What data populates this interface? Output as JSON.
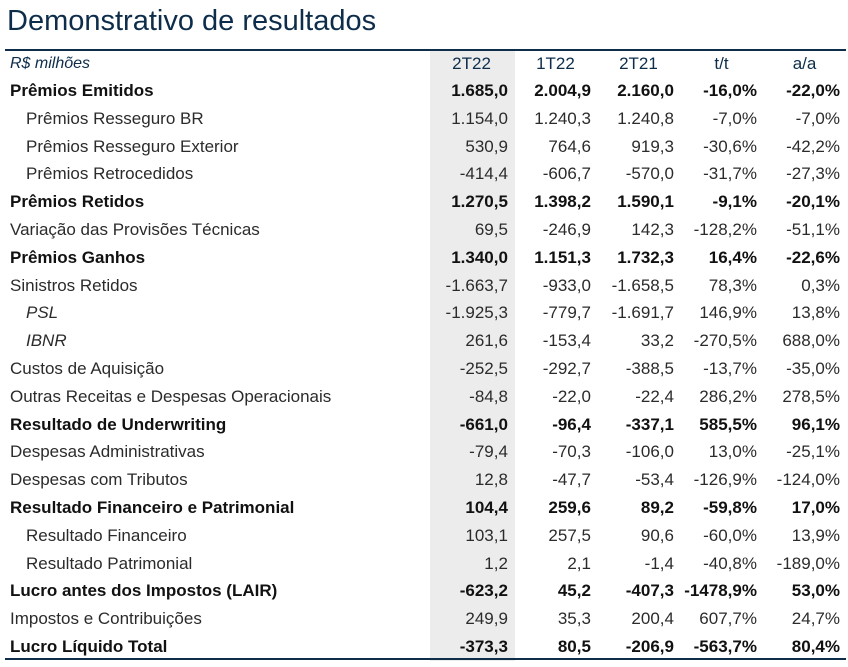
{
  "title": "Demonstrativo de resultados",
  "header": {
    "unit_label": "R$ milhões",
    "columns": [
      "2T22",
      "1T22",
      "2T21",
      "t/t",
      "a/a"
    ]
  },
  "rows": [
    {
      "label": "Prêmios Emitidos",
      "style": "bold",
      "values": [
        "1.685,0",
        "2.004,9",
        "2.160,0",
        "-16,0%",
        "-22,0%"
      ]
    },
    {
      "label": "Prêmios Resseguro BR",
      "style": "indent",
      "values": [
        "1.154,0",
        "1.240,3",
        "1.240,8",
        "-7,0%",
        "-7,0%"
      ]
    },
    {
      "label": "Prêmios Resseguro Exterior",
      "style": "indent",
      "values": [
        "530,9",
        "764,6",
        "919,3",
        "-30,6%",
        "-42,2%"
      ]
    },
    {
      "label": "Prêmios Retrocedidos",
      "style": "indent",
      "values": [
        "-414,4",
        "-606,7",
        "-570,0",
        "-31,7%",
        "-27,3%"
      ]
    },
    {
      "label": "Prêmios Retidos",
      "style": "bold",
      "values": [
        "1.270,5",
        "1.398,2",
        "1.590,1",
        "-9,1%",
        "-20,1%"
      ]
    },
    {
      "label": "Variação das Provisões Técnicas",
      "style": "normal",
      "values": [
        "69,5",
        "-246,9",
        "142,3",
        "-128,2%",
        "-51,1%"
      ]
    },
    {
      "label": "Prêmios Ganhos",
      "style": "bold",
      "values": [
        "1.340,0",
        "1.151,3",
        "1.732,3",
        "16,4%",
        "-22,6%"
      ]
    },
    {
      "label": "Sinistros Retidos",
      "style": "normal",
      "values": [
        "-1.663,7",
        "-933,0",
        "-1.658,5",
        "78,3%",
        "0,3%"
      ]
    },
    {
      "label": "PSL",
      "style": "indent-italic",
      "values": [
        "-1.925,3",
        "-779,7",
        "-1.691,7",
        "146,9%",
        "13,8%"
      ]
    },
    {
      "label": "IBNR",
      "style": "indent-italic",
      "values": [
        "261,6",
        "-153,4",
        "33,2",
        "-270,5%",
        "688,0%"
      ]
    },
    {
      "label": "Custos de Aquisição",
      "style": "normal",
      "values": [
        "-252,5",
        "-292,7",
        "-388,5",
        "-13,7%",
        "-35,0%"
      ]
    },
    {
      "label": "Outras Receitas e Despesas Operacionais",
      "style": "normal",
      "values": [
        "-84,8",
        "-22,0",
        "-22,4",
        "286,2%",
        "278,5%"
      ]
    },
    {
      "label": "Resultado de Underwriting",
      "style": "bold",
      "values": [
        "-661,0",
        "-96,4",
        "-337,1",
        "585,5%",
        "96,1%"
      ]
    },
    {
      "label": "Despesas Administrativas",
      "style": "normal",
      "values": [
        "-79,4",
        "-70,3",
        "-106,0",
        "13,0%",
        "-25,1%"
      ]
    },
    {
      "label": "Despesas com Tributos",
      "style": "normal",
      "values": [
        "12,8",
        "-47,7",
        "-53,4",
        "-126,9%",
        "-124,0%"
      ]
    },
    {
      "label": "Resultado Financeiro e Patrimonial",
      "style": "bold",
      "values": [
        "104,4",
        "259,6",
        "89,2",
        "-59,8%",
        "17,0%"
      ]
    },
    {
      "label": "Resultado Financeiro",
      "style": "indent",
      "values": [
        "103,1",
        "257,5",
        "90,6",
        "-60,0%",
        "13,9%"
      ]
    },
    {
      "label": "Resultado Patrimonial",
      "style": "indent",
      "values": [
        "1,2",
        "2,1",
        "-1,4",
        "-40,8%",
        "-189,0%"
      ]
    },
    {
      "label": "Lucro antes dos Impostos (LAIR)",
      "style": "bold",
      "values": [
        "-623,2",
        "45,2",
        "-407,3",
        "-1478,9%",
        "53,0%"
      ]
    },
    {
      "label": "Impostos e Contribuições",
      "style": "normal",
      "values": [
        "249,9",
        "35,3",
        "200,4",
        "607,7%",
        "24,7%"
      ]
    },
    {
      "label": "Lucro Líquido Total",
      "style": "bold",
      "values": [
        "-373,3",
        "80,5",
        "-206,9",
        "-563,7%",
        "80,4%"
      ]
    }
  ]
}
